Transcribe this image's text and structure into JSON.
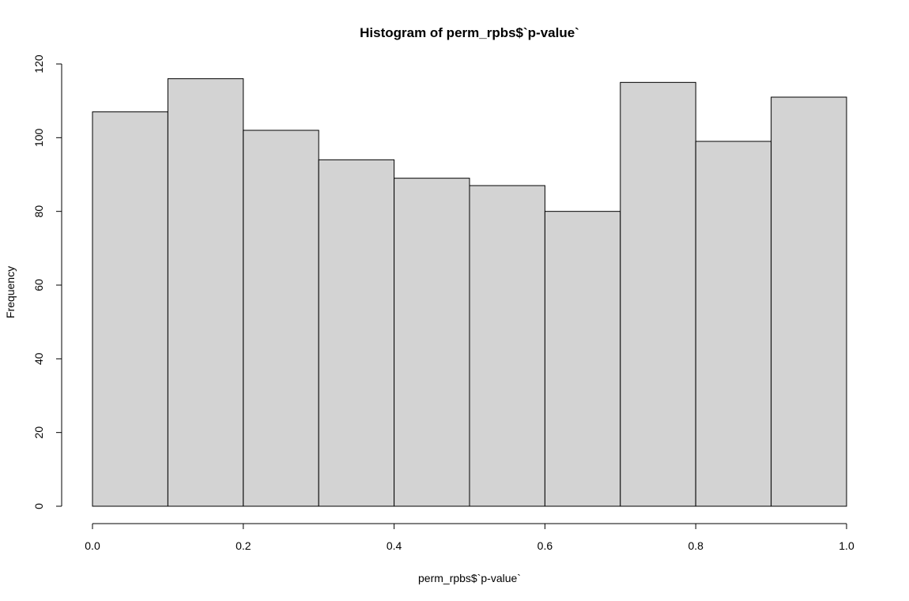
{
  "chart_data": {
    "type": "bar",
    "title": "Histogram of perm_rpbs$`p-value`",
    "xlabel": "perm_rpbs$`p-value`",
    "ylabel": "Frequency",
    "bin_edges": [
      0.0,
      0.1,
      0.2,
      0.3,
      0.4,
      0.5,
      0.6,
      0.7,
      0.8,
      0.9,
      1.0
    ],
    "values": [
      107,
      116,
      102,
      94,
      89,
      87,
      80,
      115,
      99,
      111
    ],
    "xlim": [
      0.0,
      1.0
    ],
    "ylim": [
      0,
      120
    ],
    "x_ticks": [
      "0.0",
      "0.2",
      "0.4",
      "0.6",
      "0.8",
      "1.0"
    ],
    "y_ticks": [
      "0",
      "20",
      "40",
      "60",
      "80",
      "100",
      "120"
    ],
    "grid": false,
    "legend": "none",
    "colors": {
      "bar_fill": "#d3d3d3",
      "bar_stroke": "#000000"
    }
  }
}
